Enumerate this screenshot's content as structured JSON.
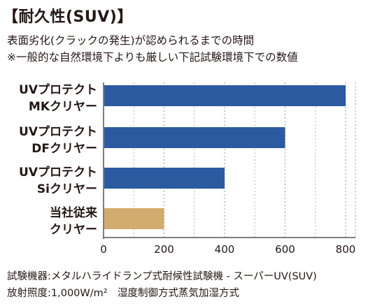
{
  "header": {
    "title": "【耐久性(SUV)】",
    "subtitle": "表面劣化(クラックの発生)が認められるまでの時間",
    "note": "※一般的な自然環境下よりも厳しい下記試験環境下での数値"
  },
  "footer": {
    "line1": "試験機器:メタルハライドランプ式耐候性試験機 - スーパーUV(SUV)",
    "line2": "放射照度:1,000W/m²　湿度制御方式蒸気加湿方式"
  },
  "chart_data": {
    "type": "bar",
    "orientation": "horizontal",
    "categories": [
      [
        "UVプロテクト",
        "MKクリヤー"
      ],
      [
        "UVプロテクト",
        "DFクリヤー"
      ],
      [
        "UVプロテクト",
        "Siクリヤー"
      ],
      [
        "当社従来",
        "クリヤー"
      ]
    ],
    "values": [
      800,
      600,
      400,
      200
    ],
    "bar_colors": [
      "#2c5aa0",
      "#2c5aa0",
      "#2c5aa0",
      "#d2ac6e"
    ],
    "xlim": [
      0,
      800
    ],
    "xticks": [
      "0",
      "200",
      "400",
      "600",
      "800"
    ],
    "grid": "vertical dashed",
    "xlabel": "",
    "ylabel": ""
  }
}
